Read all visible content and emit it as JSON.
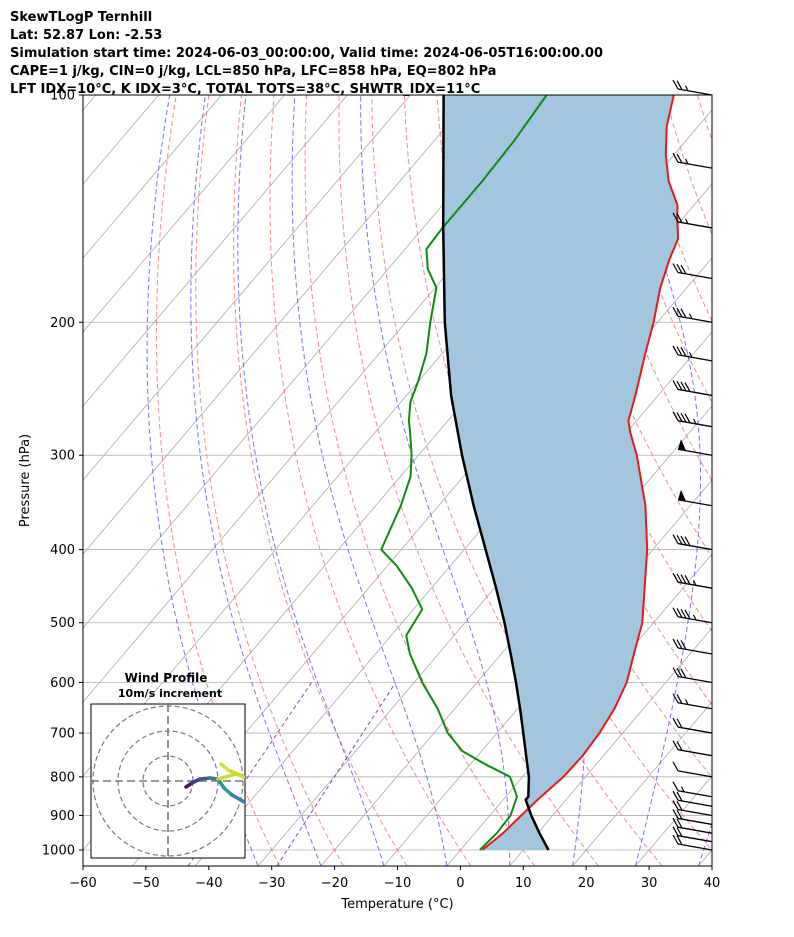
{
  "header": {
    "title": "SkewTLogP Ternhill",
    "location": "Lat: 52.87   Lon: -2.53",
    "times": "Simulation start time: 2024-06-03_00:00:00, Valid time: 2024-06-05T16:00:00.00",
    "indices": "CAPE=1 j/kg, CIN=0 j/kg, LCL=850 hPa, LFC=858 hPa, EQ=802 hPa",
    "indices2": "LFT IDX=10°C, K IDX=3°C, TOTAL TOTS=38°C, SHWTR_IDX=11°C"
  },
  "chart_data": {
    "type": "line",
    "subtype": "skew-T log-P diagram",
    "xlabel": "Temperature (°C)",
    "ylabel": "Pressure (hPa)",
    "xlim": [
      -60,
      40
    ],
    "ylim": [
      1050,
      100
    ],
    "y_scale": "log",
    "x_ticks": [
      "−60",
      "−50",
      "−40",
      "−30",
      "−20",
      "−10",
      "0",
      "10",
      "20",
      "30",
      "40"
    ],
    "y_ticks": [
      "1000",
      "900",
      "800",
      "700",
      "600",
      "500",
      "400",
      "300",
      "200",
      "100"
    ],
    "grid": true,
    "colors": {
      "temperature": "#e41a1c",
      "dewpoint": "#118811",
      "parcel": "#000000",
      "cape_fill": "#a3c6df",
      "dry_adiabat": "#f56b6b",
      "moist_adiabat": "#5a5af0",
      "mixing_ratio": "#8a44c8",
      "isotherm": "#aaaaaa"
    },
    "series": [
      {
        "role": "temperature",
        "points": [
          [
            1000,
            3.5
          ],
          [
            950,
            4.5
          ],
          [
            900,
            5
          ],
          [
            850,
            5.6
          ],
          [
            800,
            6.5
          ],
          [
            750,
            6.7
          ],
          [
            700,
            6.3
          ],
          [
            650,
            5.4
          ],
          [
            600,
            3.8
          ],
          [
            550,
            1.1
          ],
          [
            500,
            -1.8
          ],
          [
            450,
            -6.1
          ],
          [
            400,
            -10.9
          ],
          [
            350,
            -17.1
          ],
          [
            300,
            -25.3
          ],
          [
            280,
            -29.4
          ],
          [
            270,
            -31.3
          ],
          [
            250,
            -33.6
          ],
          [
            220,
            -37.7
          ],
          [
            200,
            -40.6
          ],
          [
            180,
            -44.2
          ],
          [
            165,
            -46.6
          ],
          [
            155,
            -48.0
          ],
          [
            145,
            -51.1
          ],
          [
            140,
            -52.6
          ],
          [
            130,
            -57.3
          ],
          [
            120,
            -61.3
          ],
          [
            110,
            -65.0
          ],
          [
            100,
            -68.1
          ]
        ]
      },
      {
        "role": "dewpoint",
        "points": [
          [
            1000,
            3.1
          ],
          [
            950,
            3.5
          ],
          [
            900,
            3.3
          ],
          [
            850,
            1.8
          ],
          [
            800,
            -2.0
          ],
          [
            770,
            -7.6
          ],
          [
            740,
            -13.0
          ],
          [
            700,
            -17.8
          ],
          [
            650,
            -22.7
          ],
          [
            600,
            -28.7
          ],
          [
            550,
            -34.5
          ],
          [
            520,
            -37.6
          ],
          [
            480,
            -38.6
          ],
          [
            450,
            -43.1
          ],
          [
            420,
            -48.6
          ],
          [
            400,
            -53.2
          ],
          [
            350,
            -56.0
          ],
          [
            320,
            -58.4
          ],
          [
            300,
            -61.1
          ],
          [
            280,
            -64.4
          ],
          [
            270,
            -66.2
          ],
          [
            255,
            -68.5
          ],
          [
            240,
            -70.0
          ],
          [
            220,
            -72.5
          ],
          [
            200,
            -76.1
          ],
          [
            180,
            -79.8
          ],
          [
            170,
            -83.7
          ],
          [
            160,
            -86.6
          ],
          [
            150,
            -86.9
          ],
          [
            130,
            -86.9
          ],
          [
            115,
            -87.3
          ],
          [
            100,
            -88.3
          ]
        ]
      },
      {
        "role": "parcel",
        "points": [
          [
            1000,
            14.0
          ],
          [
            950,
            10.3
          ],
          [
            900,
            6.6
          ],
          [
            858,
            3.6
          ],
          [
            850,
            3.6
          ],
          [
            800,
            1.0
          ],
          [
            750,
            -2.3
          ],
          [
            700,
            -5.8
          ],
          [
            650,
            -9.6
          ],
          [
            600,
            -13.8
          ],
          [
            550,
            -18.5
          ],
          [
            500,
            -23.7
          ],
          [
            450,
            -29.7
          ],
          [
            400,
            -36.6
          ],
          [
            350,
            -44.4
          ],
          [
            300,
            -53.1
          ],
          [
            250,
            -62.9
          ],
          [
            200,
            -73.8
          ],
          [
            150,
            -86.8
          ],
          [
            100,
            -104.7
          ]
        ]
      }
    ],
    "wind_barbs": {
      "pressures": [
        1000,
        975,
        950,
        925,
        900,
        875,
        850,
        800,
        750,
        700,
        650,
        600,
        550,
        500,
        450,
        400,
        350,
        300,
        275,
        250,
        225,
        200,
        175,
        150,
        125,
        100
      ],
      "speeds_kt": [
        20,
        20,
        20,
        20,
        20,
        20,
        15,
        10,
        20,
        20,
        25,
        30,
        30,
        45,
        45,
        40,
        50,
        50,
        45,
        40,
        35,
        35,
        30,
        25,
        25,
        25
      ]
    },
    "inset": {
      "title": "Wind Profile",
      "subtitle": "10m/s increment"
    }
  }
}
